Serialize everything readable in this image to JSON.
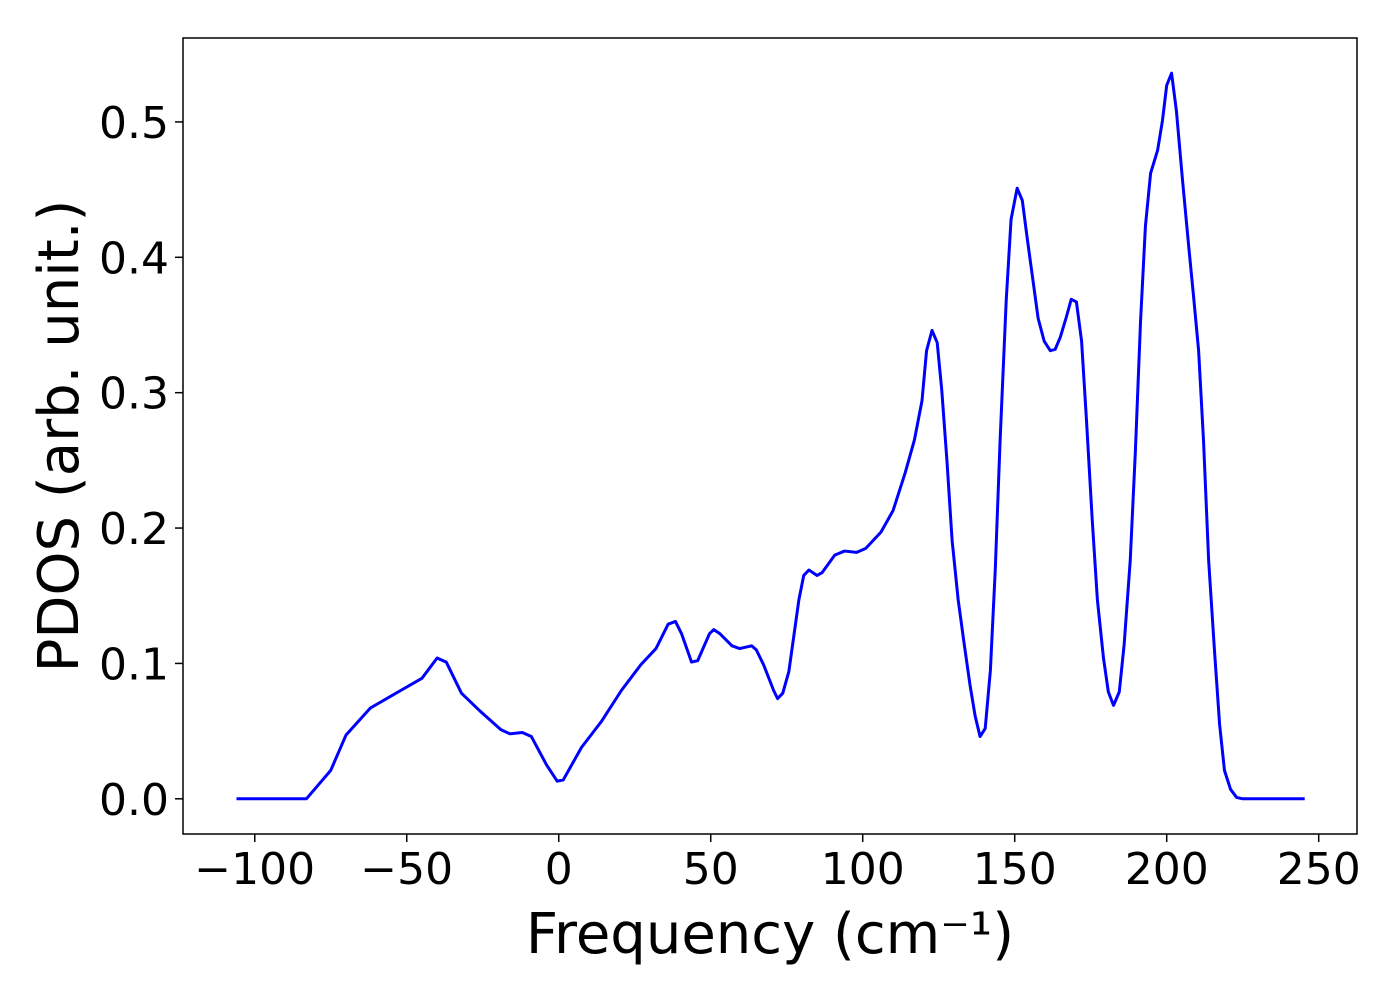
{
  "chart_data": {
    "type": "line",
    "xlabel": "Frequency (cm⁻¹)",
    "ylabel": "PDOS (arb. unit.)",
    "xlim": [
      -123.6,
      262.6
    ],
    "ylim": [
      -0.026,
      0.562
    ],
    "xticks": [
      {
        "value": -100,
        "label": "−100"
      },
      {
        "value": -50,
        "label": "−50"
      },
      0,
      50,
      100,
      150,
      200,
      250
    ],
    "yticks": [
      {
        "value": 0,
        "label": "0.0"
      },
      0.1,
      0.2,
      0.3,
      0.4,
      0.5
    ],
    "series": [
      {
        "color": "#0000ff",
        "x": [
          -106,
          -83,
          -75,
          -70,
          -62,
          -52,
          -45,
          -40,
          -37,
          -32,
          -25.5,
          -19,
          -16,
          -12,
          -9,
          -4,
          -0.5,
          1.5,
          7.5,
          14,
          20.6,
          27,
          32,
          36,
          38.4,
          40.4,
          43.7,
          45.7,
          49.6,
          51,
          53,
          57,
          59.5,
          63.5,
          65,
          67.4,
          70.7,
          72,
          73.7,
          75.7,
          79,
          80.6,
          82.3,
          85,
          86.6,
          90.8,
          94,
          98,
          101,
          106,
          110,
          114,
          117,
          119.5,
          121,
          122.8,
          124.5,
          126,
          127.7,
          129.4,
          131.4,
          133.4,
          135.3,
          137,
          138.6,
          140.3,
          142,
          143.6,
          145.2,
          147.2,
          148.8,
          150.8,
          152.5,
          154,
          156,
          157.7,
          159.7,
          161.7,
          163.3,
          165,
          167,
          168.6,
          170.3,
          172,
          173.6,
          175.5,
          177.2,
          179.2,
          180.8,
          182.5,
          184.4,
          186,
          188,
          189.7,
          191.4,
          193,
          194.7,
          197,
          198.6,
          200,
          201.6,
          203.2,
          205.2,
          207.2,
          208.8,
          210.5,
          212.1,
          213.8,
          215.7,
          217.4,
          219,
          221,
          223,
          225,
          245.4
        ],
        "values": [
          0,
          0,
          0.021,
          0.047,
          0.067,
          0.08,
          0.089,
          0.104,
          0.101,
          0.078,
          0.064,
          0.051,
          0.048,
          0.049,
          0.046,
          0.025,
          0.013,
          0.014,
          0.038,
          0.057,
          0.08,
          0.099,
          0.111,
          0.129,
          0.131,
          0.122,
          0.101,
          0.102,
          0.122,
          0.125,
          0.122,
          0.113,
          0.111,
          0.113,
          0.11,
          0.099,
          0.08,
          0.074,
          0.078,
          0.094,
          0.147,
          0.165,
          0.169,
          0.165,
          0.167,
          0.18,
          0.183,
          0.182,
          0.185,
          0.197,
          0.213,
          0.241,
          0.265,
          0.294,
          0.331,
          0.346,
          0.337,
          0.302,
          0.25,
          0.191,
          0.147,
          0.114,
          0.084,
          0.061,
          0.046,
          0.052,
          0.095,
          0.169,
          0.265,
          0.368,
          0.428,
          0.451,
          0.442,
          0.416,
          0.383,
          0.355,
          0.338,
          0.331,
          0.332,
          0.341,
          0.356,
          0.369,
          0.367,
          0.338,
          0.28,
          0.206,
          0.147,
          0.104,
          0.079,
          0.069,
          0.079,
          0.114,
          0.176,
          0.257,
          0.353,
          0.423,
          0.462,
          0.479,
          0.501,
          0.527,
          0.536,
          0.508,
          0.457,
          0.409,
          0.372,
          0.331,
          0.265,
          0.176,
          0.11,
          0.055,
          0.021,
          0.007,
          0.001,
          0,
          0
        ]
      }
    ]
  }
}
